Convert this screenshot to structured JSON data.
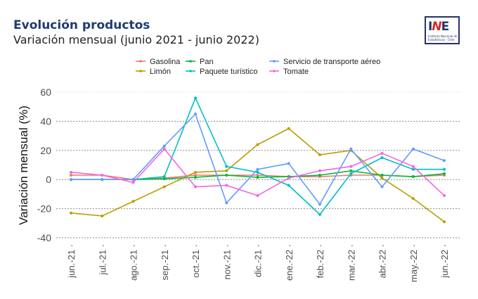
{
  "header": {
    "title": "Evolución productos",
    "subtitle": "Variación mensual (junio 2021 - junio 2022)"
  },
  "logo": {
    "letters_pre": "I",
    "letters_n": "N",
    "letters_post": "E",
    "caption": "Instituto Nacional de Estadísticas · Chile"
  },
  "chart_data": {
    "type": "line",
    "title": "Evolución productos",
    "subtitle": "Variación mensual (junio 2021 - junio 2022)",
    "xlabel": "",
    "ylabel": "Variación mensual (%)",
    "ylim": [
      -40,
      60
    ],
    "yticks": [
      -40,
      -20,
      0,
      20,
      40,
      60
    ],
    "grid": "horizontal-dotted",
    "legend_position": "top",
    "categories": [
      "jun.-21",
      "jul.-21",
      "ago.-21",
      "sep.-21",
      "oct.-21",
      "nov.-21",
      "dic.-21",
      "ene.-22",
      "feb.-22",
      "mar.-22",
      "abr.-22",
      "may.-22",
      "jun.-22"
    ],
    "series": [
      {
        "name": "Gasolina",
        "color": "#f8766d",
        "values": [
          3,
          3,
          0,
          1,
          3,
          3,
          3,
          2,
          2,
          3,
          3,
          2,
          3
        ]
      },
      {
        "name": "Limón",
        "color": "#b79f00",
        "values": [
          -23,
          -25,
          -15,
          -5,
          5,
          6,
          24,
          35,
          17,
          20,
          1,
          -13,
          -29
        ]
      },
      {
        "name": "Pan",
        "color": "#00ba38",
        "values": [
          0,
          0,
          0,
          0.5,
          1.5,
          3,
          1.5,
          2,
          3,
          6,
          3,
          2,
          4
        ]
      },
      {
        "name": "Paquete turístico",
        "color": "#00bfc4",
        "values": [
          0,
          0,
          0,
          2,
          56,
          9,
          5,
          -4,
          -24,
          4,
          15,
          7,
          7
        ]
      },
      {
        "name": "Servicio de transporte aéreo",
        "color": "#619cff",
        "values": [
          0,
          0,
          0,
          23,
          45,
          -16,
          7,
          11,
          -17,
          21,
          -5,
          21,
          13
        ]
      },
      {
        "name": "Tomate",
        "color": "#f564e3",
        "values": [
          5,
          3,
          -2,
          21,
          -5,
          -4,
          -11,
          1,
          6,
          9,
          18,
          9,
          -11
        ]
      }
    ]
  }
}
